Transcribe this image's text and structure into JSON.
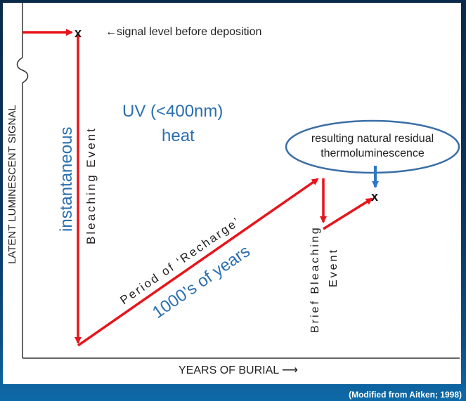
{
  "labels": {
    "signal_level": "←signal level before deposition",
    "y_axis": "LATENT LUMINESCENT SIGNAL",
    "x_axis": "YEARS OF BURIAL ⟶",
    "instantaneous": "instantaneous",
    "bleaching_event": "Bleaching Event",
    "uv_line1": "UV (<400nm)",
    "uv_line2": "heat",
    "recharge": "Period of ‘Recharge’",
    "years": "1000’s of years",
    "residual_line1": "resulting natural residual",
    "residual_line2": "thermoluminescence",
    "brief_line1": "Brief Bleaching",
    "brief_line2": "Event",
    "marker": "x"
  },
  "caption": "(Modified from Aitken; 1998)",
  "colors": {
    "arrow": "#e8141b",
    "axis": "#333333",
    "blue_text": "#2a6fb0",
    "ellipse_stroke": "#3a6ea5",
    "marker_arrow": "#2e78c7",
    "background": "#0b3a66"
  }
}
